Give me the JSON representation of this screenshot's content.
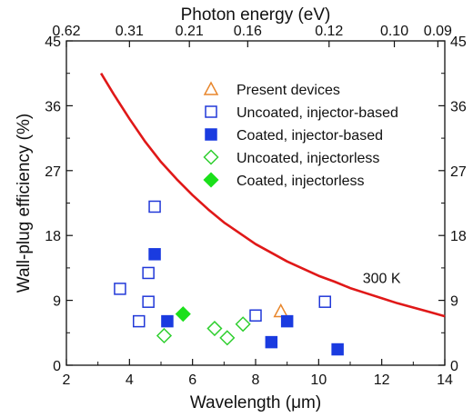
{
  "chart_data": {
    "type": "scatter",
    "xlabel": "Wavelength (μm)",
    "ylabel": "Wall-plug efficiency (%)",
    "top_xlabel": "Photon energy (eV)",
    "xlim": [
      2,
      14
    ],
    "ylim": [
      0,
      45
    ],
    "x_ticks": [
      2,
      4,
      6,
      8,
      10,
      12,
      14
    ],
    "y_ticks": [
      0,
      9,
      18,
      27,
      36,
      45
    ],
    "top_ticks": [
      {
        "label": "0.62",
        "wavelength_um": 2.0
      },
      {
        "label": "0.31",
        "wavelength_um": 4.0
      },
      {
        "label": "0.21",
        "wavelength_um": 5.9
      },
      {
        "label": "0.16",
        "wavelength_um": 7.75
      },
      {
        "label": "0.12",
        "wavelength_um": 10.33
      },
      {
        "label": "0.10",
        "wavelength_um": 12.4
      },
      {
        "label": "0.09",
        "wavelength_um": 13.78
      }
    ],
    "grid": false,
    "legend_position": "top-right",
    "series": [
      {
        "name": "Present devices",
        "marker": "triangle-open",
        "color": "#E8862C",
        "points": [
          [
            8.8,
            7.5
          ]
        ]
      },
      {
        "name": "Uncoated, injector-based",
        "marker": "square-open",
        "color": "#2138D8",
        "points": [
          [
            4.8,
            22.0
          ],
          [
            4.6,
            12.8
          ],
          [
            3.7,
            10.6
          ],
          [
            4.6,
            8.8
          ],
          [
            4.3,
            6.1
          ],
          [
            8.0,
            6.9
          ],
          [
            10.2,
            8.8
          ]
        ]
      },
      {
        "name": "Coated, injector-based",
        "marker": "square-filled",
        "color": "#1A3BE0",
        "points": [
          [
            4.8,
            15.4
          ],
          [
            5.2,
            6.1
          ],
          [
            9.0,
            6.1
          ],
          [
            8.5,
            3.2
          ],
          [
            10.6,
            2.2
          ]
        ]
      },
      {
        "name": "Uncoated, injectorless",
        "marker": "diamond-open",
        "color": "#2FCF2F",
        "points": [
          [
            5.1,
            4.1
          ],
          [
            6.7,
            5.1
          ],
          [
            7.1,
            3.8
          ],
          [
            7.6,
            5.7
          ]
        ]
      },
      {
        "name": "Coated, injectorless",
        "marker": "diamond-filled",
        "color": "#1BE01B",
        "points": [
          [
            5.7,
            7.1
          ]
        ]
      }
    ],
    "curve": {
      "label": "300 K",
      "color": "#E01818",
      "x": [
        3.1,
        3.5,
        4.0,
        4.5,
        5.0,
        5.5,
        6.0,
        6.5,
        7.0,
        7.5,
        8.0,
        8.5,
        9.0,
        9.5,
        10.0,
        10.5,
        11.0,
        11.5,
        12.0,
        12.5,
        13.0,
        13.5,
        14.0
      ],
      "y": [
        40.5,
        37.6,
        34.2,
        31.0,
        28.2,
        25.8,
        23.6,
        21.6,
        19.8,
        18.3,
        16.8,
        15.6,
        14.4,
        13.4,
        12.4,
        11.6,
        10.7,
        10.0,
        9.3,
        8.6,
        8.0,
        7.4,
        6.8
      ]
    }
  }
}
